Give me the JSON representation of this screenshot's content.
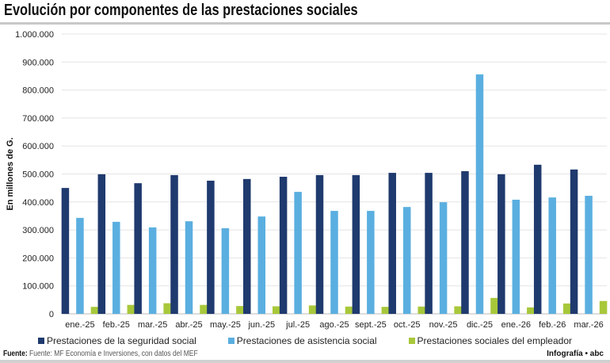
{
  "title": "Evolución por componentes de las prestaciones sociales",
  "source_label": "Fuente:",
  "source_text": "Fuente: MF Economía e Inversiones, con datos del MEF",
  "credit": "Infografía • abc",
  "chart_data": {
    "type": "bar",
    "title": "Evolución por componentes de las prestaciones sociales",
    "xlabel": "",
    "ylabel": "En millones de G.",
    "ylim": [
      0,
      1000000
    ],
    "yticks": [
      "0",
      "100.000",
      "200.000",
      "300.000",
      "400.000",
      "500.000",
      "600.000",
      "700.000",
      "800.000",
      "900.000",
      "1.000.000"
    ],
    "grid": true,
    "legend": "bottom",
    "categories": [
      "ene.-25",
      "feb.-25",
      "mar.-25",
      "abr.-25",
      "may.-25",
      "jun.-25",
      "jul.-25",
      "ago.-25",
      "sept.-25",
      "oct.-25",
      "nov.-25",
      "dic.-25",
      "ene.-26",
      "feb.-26",
      "mar.-26"
    ],
    "series": [
      {
        "name": "Prestaciones de la seguridad social",
        "color": "#1f3a6e",
        "values": [
          450000,
          499000,
          467000,
          496000,
          476000,
          482000,
          490000,
          496000,
          496000,
          504000,
          504000,
          510000,
          499000,
          533000,
          516000
        ]
      },
      {
        "name": "Prestaciones de asistencia social",
        "color": "#5aafe0",
        "values": [
          343000,
          329000,
          309000,
          331000,
          306000,
          348000,
          436000,
          368000,
          368000,
          382000,
          399000,
          856000,
          408000,
          416000,
          422000
        ]
      },
      {
        "name": "Prestaciones sociales del empleador",
        "color": "#a8c83a",
        "values": [
          25000,
          32000,
          38000,
          32000,
          28000,
          27000,
          30000,
          26000,
          25000,
          26000,
          27000,
          57000,
          23000,
          37000,
          46000
        ]
      }
    ]
  }
}
